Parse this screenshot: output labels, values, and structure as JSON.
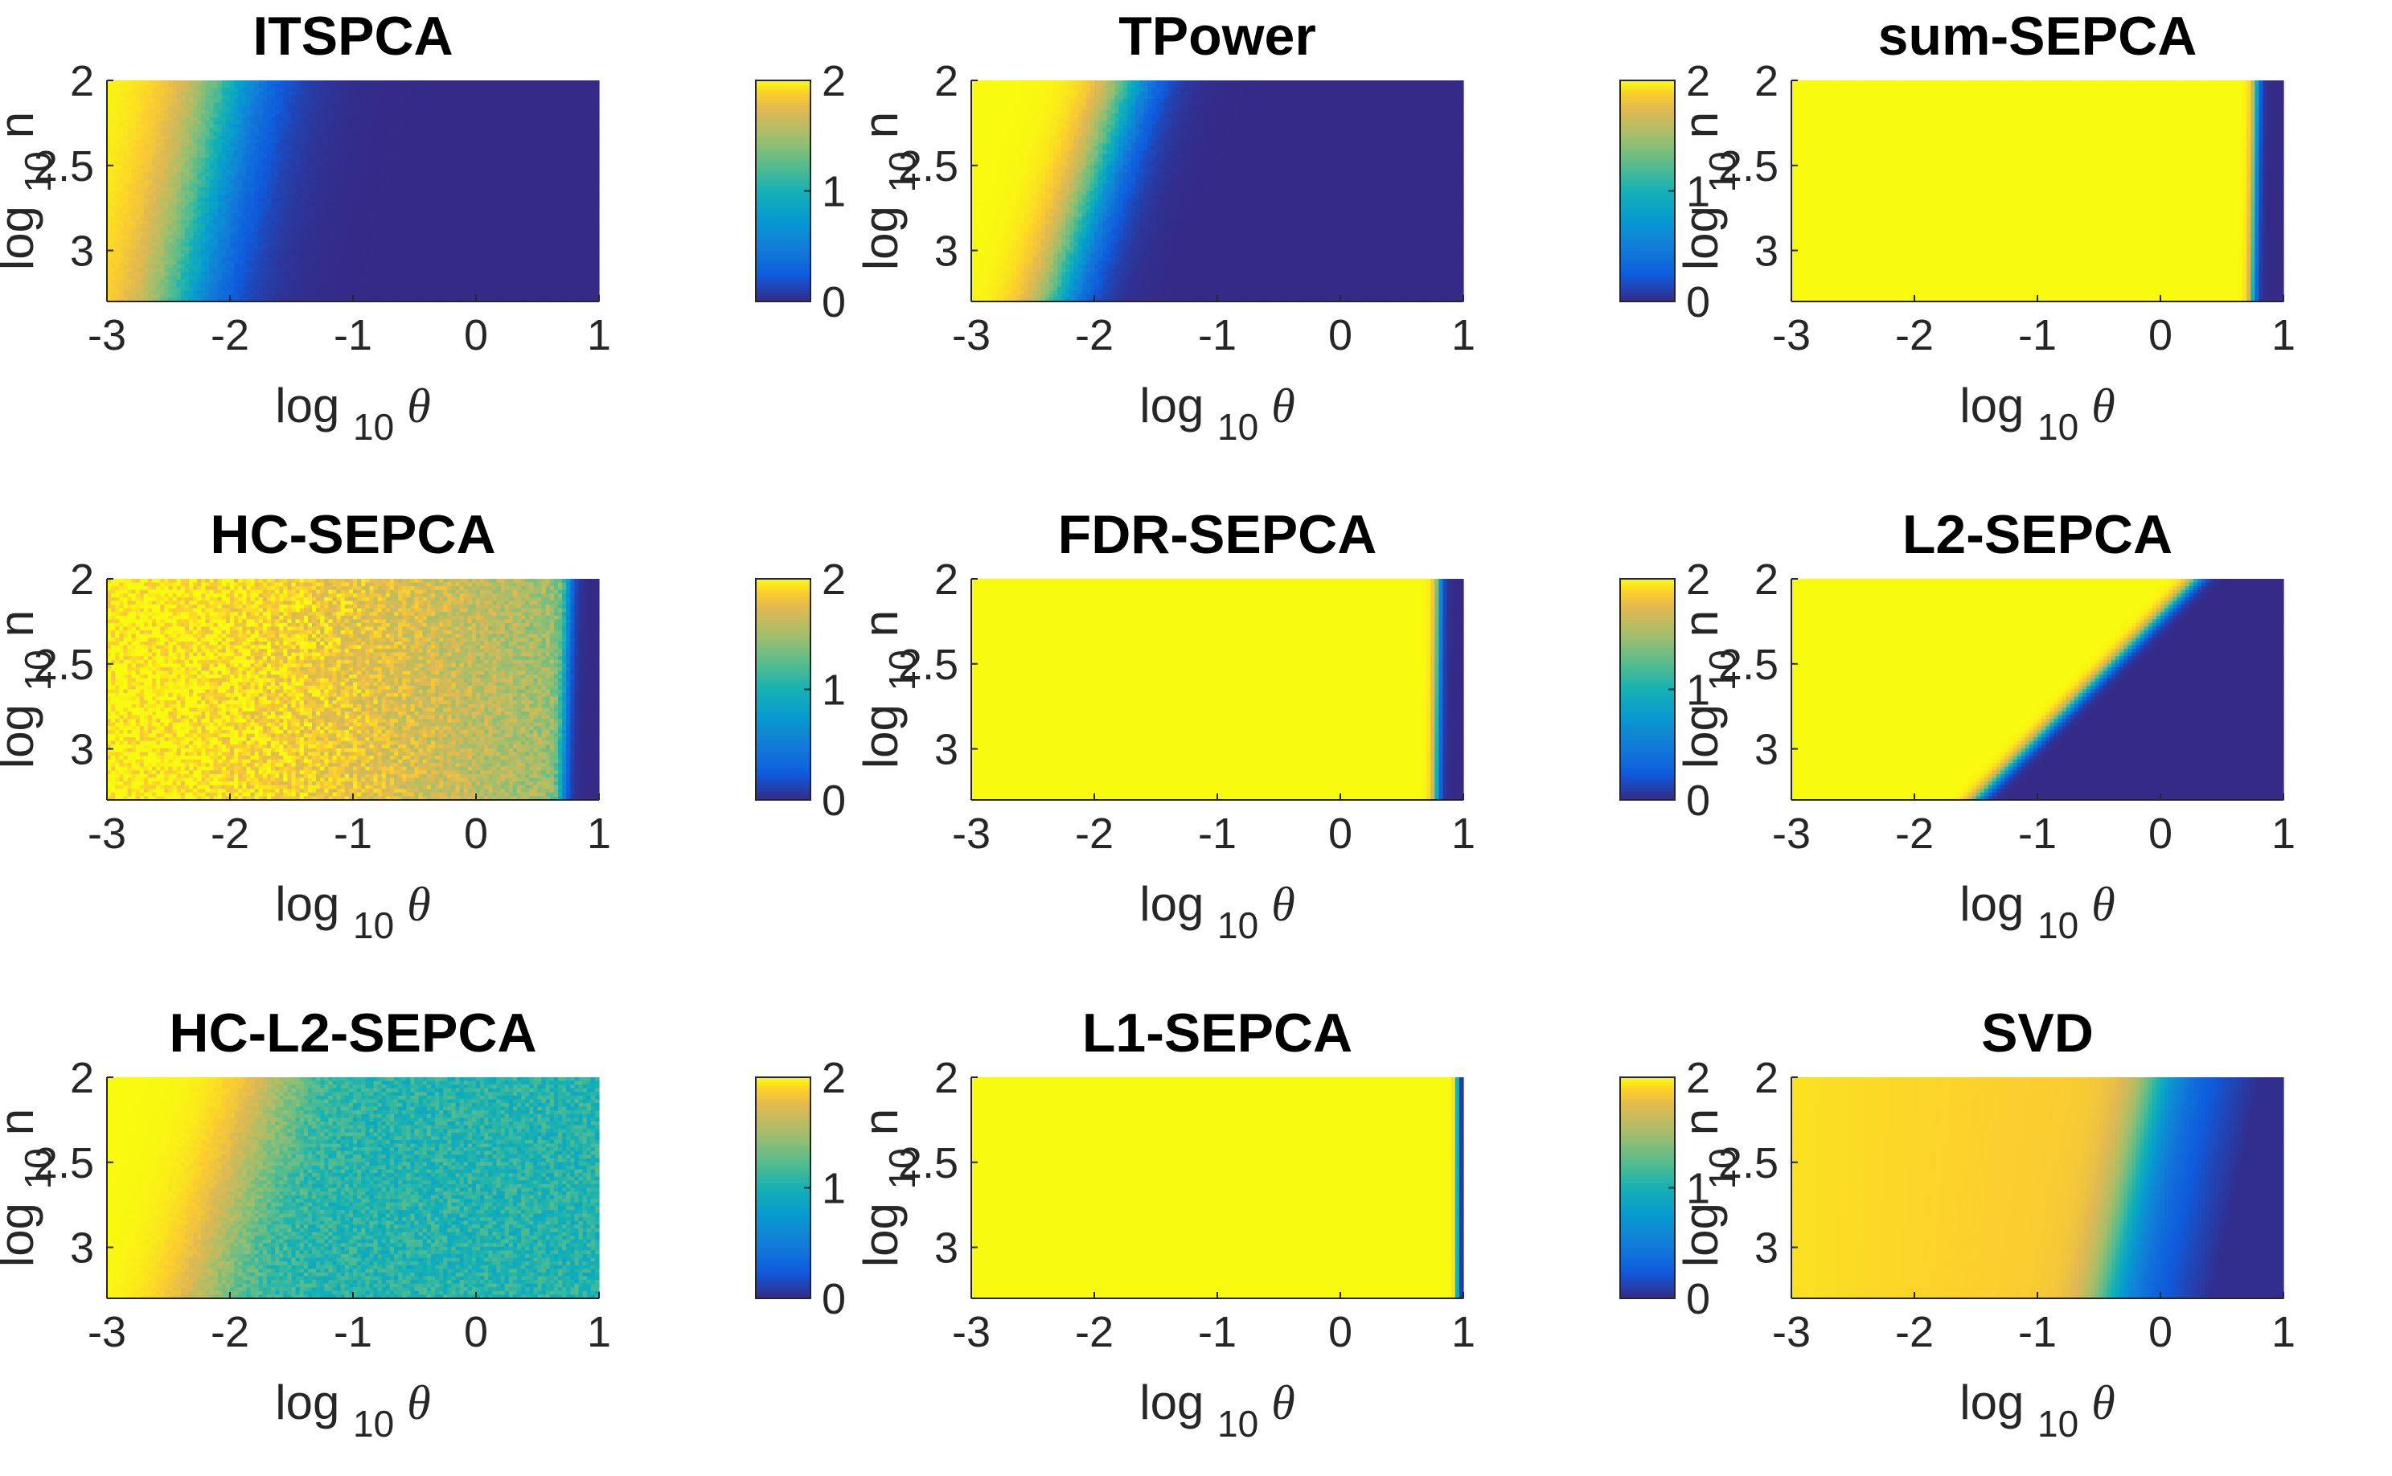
{
  "chart_data": [
    {
      "type": "heatmap",
      "title": "ITSPCA",
      "xlabel": "log",
      "xlabel_sub": "10",
      "xlabel_var": "θ",
      "ylabel": "log",
      "ylabel_sub": "10",
      "ylabel_suffix": "n",
      "xlim": [
        -3,
        1
      ],
      "ylim": [
        2,
        3.3
      ],
      "xticks": [
        -3,
        -2,
        -1,
        0,
        1
      ],
      "xtick_labels": [
        "-3",
        "-2",
        "-1",
        "0",
        "1"
      ],
      "yticks": [
        2,
        2.5,
        3
      ],
      "ytick_labels": [
        "2",
        "2.5",
        "3"
      ],
      "colorbar": {
        "range": [
          0,
          2
        ],
        "ticks": [
          0,
          1,
          2
        ],
        "tick_labels": [
          "0",
          "1",
          "2"
        ],
        "colormap": "parula"
      },
      "surface": {
        "kind": "sigmoid",
        "t_at_n2": -2.0,
        "t_at_n3_3": -2.4,
        "width": 0.22
      }
    },
    {
      "type": "heatmap",
      "title": "TPower",
      "xlabel": "log",
      "xlabel_sub": "10",
      "xlabel_var": "θ",
      "ylabel": "log",
      "ylabel_sub": "10",
      "ylabel_suffix": "n",
      "xlim": [
        -3,
        1
      ],
      "ylim": [
        2,
        3.3
      ],
      "xticks": [
        -3,
        -2,
        -1,
        0,
        1
      ],
      "xtick_labels": [
        "-3",
        "-2",
        "-1",
        "0",
        "1"
      ],
      "yticks": [
        2,
        2.5,
        3
      ],
      "ytick_labels": [
        "2",
        "2.5",
        "3"
      ],
      "colorbar": {
        "range": [
          0,
          2
        ],
        "ticks": [
          0,
          1,
          2
        ],
        "tick_labels": [
          "0",
          "1",
          "2"
        ],
        "colormap": "parula"
      },
      "surface": {
        "kind": "sigmoid",
        "t_at_n2": -1.7,
        "t_at_n3_3": -2.3,
        "width": 0.14
      }
    },
    {
      "type": "heatmap",
      "title": "sum-SEPCA",
      "xlabel": "log",
      "xlabel_sub": "10",
      "xlabel_var": "θ",
      "ylabel": "log",
      "ylabel_sub": "10",
      "ylabel_suffix": "n",
      "xlim": [
        -3,
        1
      ],
      "ylim": [
        2,
        3.3
      ],
      "xticks": [
        -3,
        -2,
        -1,
        0,
        1
      ],
      "xtick_labels": [
        "-3",
        "-2",
        "-1",
        "0",
        "1"
      ],
      "yticks": [
        2,
        2.5,
        3
      ],
      "ytick_labels": [
        "2",
        "2.5",
        "3"
      ],
      "colorbar": {
        "range": [
          0,
          2
        ],
        "ticks": [
          0,
          1,
          2
        ],
        "tick_labels": [
          "0",
          "1",
          "2"
        ],
        "colormap": "parula"
      },
      "surface": {
        "kind": "step",
        "t_at_n2": 0.78,
        "t_at_n3_3": 0.75,
        "width": 0.02
      }
    },
    {
      "type": "heatmap",
      "title": "HC-SEPCA",
      "xlabel": "log",
      "xlabel_sub": "10",
      "xlabel_var": "θ",
      "ylabel": "log",
      "ylabel_sub": "10",
      "ylabel_suffix": "n",
      "xlim": [
        -3,
        1
      ],
      "ylim": [
        2,
        3.3
      ],
      "xticks": [
        -3,
        -2,
        -1,
        0,
        1
      ],
      "xtick_labels": [
        "-3",
        "-2",
        "-1",
        "0",
        "1"
      ],
      "yticks": [
        2,
        2.5,
        3
      ],
      "ytick_labels": [
        "2",
        "2.5",
        "3"
      ],
      "colorbar": {
        "range": [
          0,
          2
        ],
        "ticks": [
          0,
          1,
          2
        ],
        "tick_labels": [
          "0",
          "1",
          "2"
        ],
        "colormap": "parula"
      },
      "surface": {
        "kind": "noisy",
        "t_at_n2": 0.75,
        "t_at_n3_3": 0.7,
        "width": 0.03
      }
    },
    {
      "type": "heatmap",
      "title": "FDR-SEPCA",
      "xlabel": "log",
      "xlabel_sub": "10",
      "xlabel_var": "θ",
      "ylabel": "log",
      "ylabel_sub": "10",
      "ylabel_suffix": "n",
      "xlim": [
        -3,
        1
      ],
      "ylim": [
        2,
        3.3
      ],
      "xticks": [
        -3,
        -2,
        -1,
        0,
        1
      ],
      "xtick_labels": [
        "-3",
        "-2",
        "-1",
        "0",
        "1"
      ],
      "yticks": [
        2,
        2.5,
        3
      ],
      "ytick_labels": [
        "2",
        "2.5",
        "3"
      ],
      "colorbar": {
        "range": [
          0,
          2
        ],
        "ticks": [
          0,
          1,
          2
        ],
        "tick_labels": [
          "0",
          "1",
          "2"
        ],
        "colormap": "parula"
      },
      "surface": {
        "kind": "step",
        "t_at_n2": 0.8,
        "t_at_n3_3": 0.78,
        "width": 0.02
      }
    },
    {
      "type": "heatmap",
      "title": "L2-SEPCA",
      "xlabel": "log",
      "xlabel_sub": "10",
      "xlabel_var": "θ",
      "ylabel": "log",
      "ylabel_sub": "10",
      "ylabel_suffix": "n",
      "xlim": [
        -3,
        1
      ],
      "ylim": [
        2,
        3.3
      ],
      "xticks": [
        -3,
        -2,
        -1,
        0,
        1
      ],
      "xtick_labels": [
        "-3",
        "-2",
        "-1",
        "0",
        "1"
      ],
      "yticks": [
        2,
        2.5,
        3
      ],
      "ytick_labels": [
        "2",
        "2.5",
        "3"
      ],
      "colorbar": {
        "range": [
          0,
          2
        ],
        "ticks": [
          0,
          1,
          2
        ],
        "tick_labels": [
          "0",
          "1",
          "2"
        ],
        "colormap": "parula"
      },
      "surface": {
        "kind": "step",
        "t_at_n2": 0.3,
        "t_at_n3_3": -1.5,
        "width": 0.04
      }
    },
    {
      "type": "heatmap",
      "title": "HC-L2-SEPCA",
      "xlabel": "log",
      "xlabel_sub": "10",
      "xlabel_var": "θ",
      "ylabel": "log",
      "ylabel_sub": "10",
      "ylabel_suffix": "n",
      "xlim": [
        -3,
        1
      ],
      "ylim": [
        2,
        3.3
      ],
      "xticks": [
        -3,
        -2,
        -1,
        0,
        1
      ],
      "xtick_labels": [
        "-3",
        "-2",
        "-1",
        "0",
        "1"
      ],
      "yticks": [
        2,
        2.5,
        3
      ],
      "ytick_labels": [
        "2",
        "2.5",
        "3"
      ],
      "colorbar": {
        "range": [
          0,
          2
        ],
        "ticks": [
          0,
          1,
          2
        ],
        "tick_labels": [
          "0",
          "1",
          "2"
        ],
        "colormap": "parula"
      },
      "surface": {
        "kind": "plateau",
        "t_at_n2": -1.6,
        "t_at_n3_3": -2.2,
        "width": 0.2,
        "low_level": 1.05
      }
    },
    {
      "type": "heatmap",
      "title": "L1-SEPCA",
      "xlabel": "log",
      "xlabel_sub": "10",
      "xlabel_var": "θ",
      "ylabel": "log",
      "ylabel_sub": "10",
      "ylabel_suffix": "n",
      "xlim": [
        -3,
        1
      ],
      "ylim": [
        2,
        3.3
      ],
      "xticks": [
        -3,
        -2,
        -1,
        0,
        1
      ],
      "xtick_labels": [
        "-3",
        "-2",
        "-1",
        "0",
        "1"
      ],
      "yticks": [
        2,
        2.5,
        3
      ],
      "ytick_labels": [
        "2",
        "2.5",
        "3"
      ],
      "colorbar": {
        "range": [
          0,
          2
        ],
        "ticks": [
          0,
          1,
          2
        ],
        "tick_labels": [
          "0",
          "1",
          "2"
        ],
        "colormap": "parula"
      },
      "surface": {
        "kind": "step",
        "t_at_n2": 0.95,
        "t_at_n3_3": 0.95,
        "width": 0.01
      }
    },
    {
      "type": "heatmap",
      "title": "SVD",
      "xlabel": "log",
      "xlabel_sub": "10",
      "xlabel_var": "θ",
      "ylabel": "log",
      "ylabel_sub": "10",
      "ylabel_suffix": "n",
      "xlim": [
        -3,
        1
      ],
      "ylim": [
        2,
        3.3
      ],
      "xticks": [
        -3,
        -2,
        -1,
        0,
        1
      ],
      "xtick_labels": [
        "-3",
        "-2",
        "-1",
        "0",
        "1"
      ],
      "yticks": [
        2,
        2.5,
        3
      ],
      "ytick_labels": [
        "2",
        "2.5",
        "3"
      ],
      "colorbar": {
        "range": [
          0,
          2
        ],
        "ticks": [
          0,
          1,
          2
        ],
        "tick_labels": [
          "0",
          "1",
          "2"
        ],
        "colormap": "parula"
      },
      "surface": {
        "kind": "svd",
        "t_at_n2": -0.05,
        "t_at_n3_3": -0.45,
        "width": 0.12
      }
    }
  ]
}
